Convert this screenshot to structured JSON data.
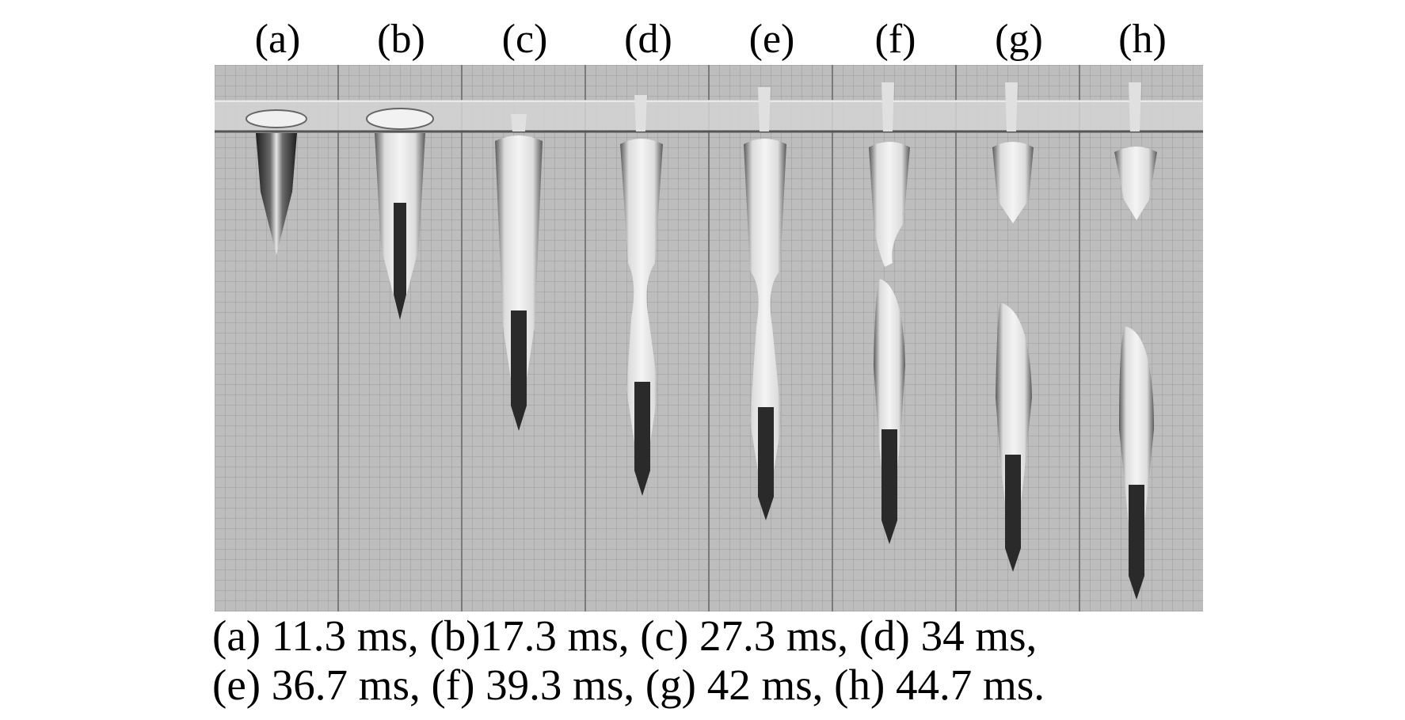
{
  "figure": {
    "panel_labels": [
      "(a)",
      "(b)",
      "(c)",
      "(d)",
      "(e)",
      "(f)",
      "(g)",
      "(h)"
    ],
    "caption_lines": [
      "(a) 11.3 ms, (b)17.3 ms, (c) 27.3 ms, (d) 34 ms,",
      "(e) 36.7 ms, (f) 39.3 ms, (g) 42 ms, (h) 44.7 ms."
    ],
    "panel_times_ms": [
      11.3,
      17.3,
      27.3,
      34,
      36.7,
      39.3,
      42,
      44.7
    ],
    "colors": {
      "background": "#ffffff",
      "photo_base": "#b9b9b9",
      "grid_line": "#8c8c8c",
      "projectile_dark": "#2a2a2a",
      "cavity_light": "#e8e8e8"
    }
  }
}
